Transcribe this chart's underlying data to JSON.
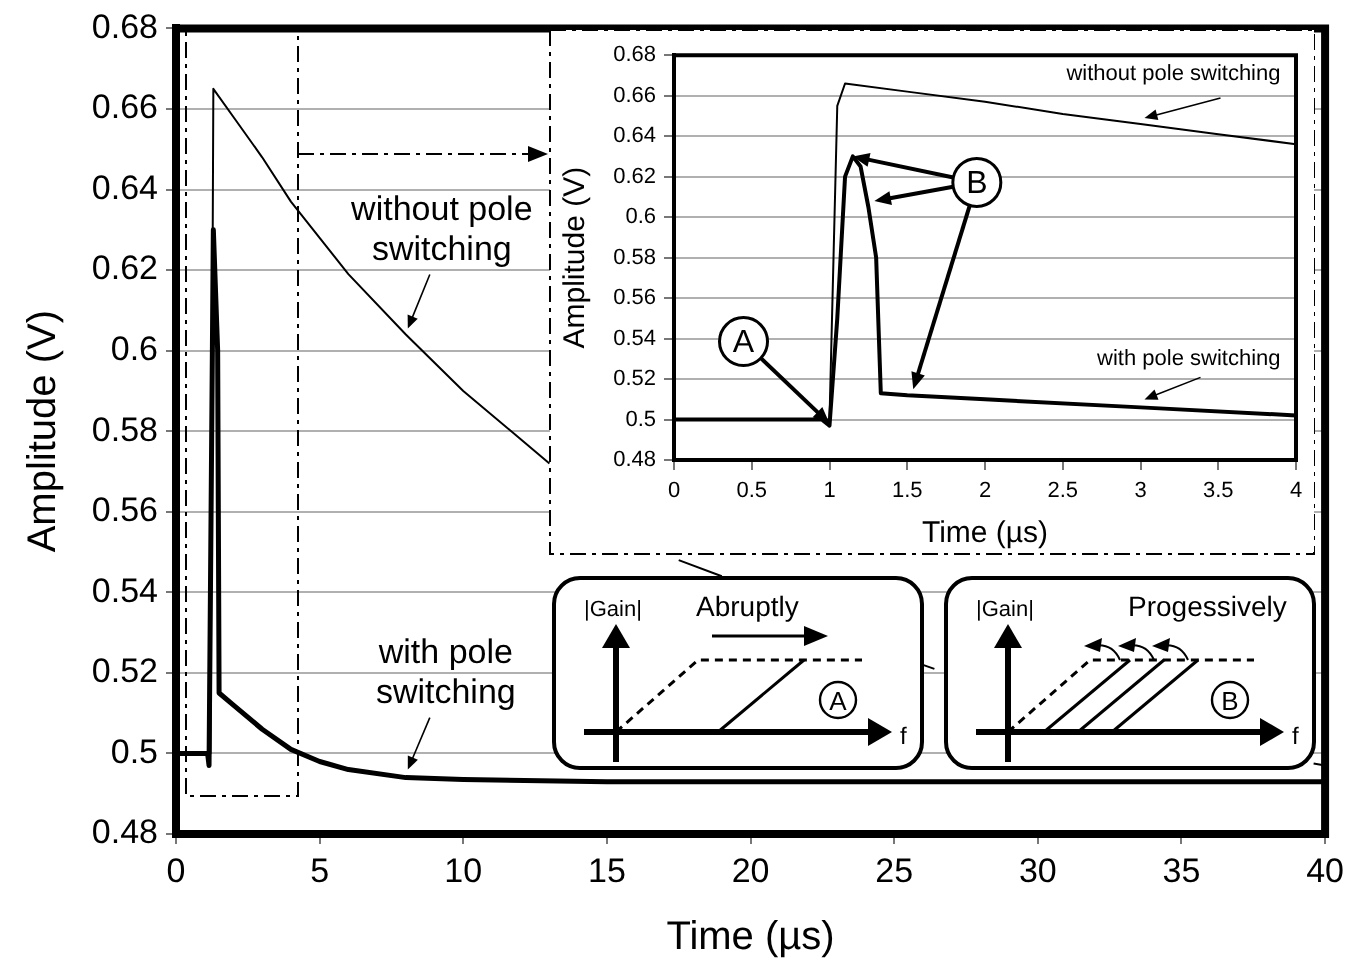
{
  "chart_data": [
    {
      "type": "line",
      "xlabel": "Time (µs)",
      "ylabel": "Amplitude (V)",
      "xlim": [
        0,
        40
      ],
      "xticks": [
        0,
        5,
        10,
        15,
        20,
        25,
        30,
        35,
        40
      ],
      "ylim": [
        0.48,
        0.68
      ],
      "yticks": [
        0.48,
        0.5,
        0.52,
        0.54,
        0.56,
        0.58,
        0.6,
        0.62,
        0.64,
        0.66,
        0.68
      ],
      "grid": "y",
      "series": [
        {
          "name": "without pole switching",
          "color": "#000000",
          "x": [
            0,
            1.2,
            1.3,
            2,
            3,
            4,
            5,
            6,
            8,
            10,
            12,
            13,
            15,
            17.5,
            19,
            22,
            26,
            26.4,
            33,
            39.6,
            40
          ],
          "values": [
            0.5,
            0.5,
            0.665,
            0.658,
            0.648,
            0.637,
            0.628,
            0.619,
            0.604,
            0.59,
            0.578,
            0.572,
            null,
            0.548,
            0.544,
            null,
            0.522,
            0.521,
            null,
            0.4975,
            0.497
          ]
        },
        {
          "name": "with pole switching",
          "color": "#000000",
          "x": [
            0,
            1.1,
            1.15,
            1.3,
            1.45,
            1.5,
            2,
            3,
            4,
            5,
            6,
            8,
            10,
            15,
            20,
            30,
            40
          ],
          "values": [
            0.5,
            0.5,
            0.497,
            0.63,
            0.6,
            0.515,
            0.512,
            0.506,
            0.501,
            0.498,
            0.496,
            0.494,
            0.4935,
            0.493,
            0.493,
            0.493,
            0.493
          ]
        }
      ],
      "annotations": [
        "|Gain|",
        "Abruptly",
        "f",
        "A",
        "|Gain|",
        "Progessively",
        "f",
        "B"
      ]
    },
    {
      "type": "line",
      "xlabel": "Time (µs)",
      "ylabel": "Amplitude (V)",
      "xlim": [
        0,
        4
      ],
      "xticks": [
        0,
        0.5,
        1,
        1.5,
        2,
        2.5,
        3,
        3.5,
        4
      ],
      "ylim": [
        0.48,
        0.68
      ],
      "yticks": [
        0.48,
        0.5,
        0.52,
        0.54,
        0.56,
        0.58,
        0.6,
        0.62,
        0.64,
        0.66,
        0.68
      ],
      "grid": "y",
      "series": [
        {
          "name": "without pole switching",
          "color": "#000000",
          "x": [
            0,
            1,
            1.05,
            1.1,
            1.5,
            2,
            2.5,
            3,
            3.5,
            4
          ],
          "values": [
            0.5,
            0.5,
            0.655,
            0.666,
            0.662,
            0.657,
            0.651,
            0.646,
            0.641,
            0.636
          ]
        },
        {
          "name": "with pole switching",
          "color": "#000000",
          "x": [
            0,
            0.95,
            1,
            1.05,
            1.1,
            1.15,
            1.2,
            1.25,
            1.3,
            1.33,
            1.5,
            2,
            3,
            4
          ],
          "values": [
            0.5,
            0.5,
            0.497,
            0.55,
            0.62,
            0.63,
            0.625,
            0.605,
            0.58,
            0.513,
            0.512,
            0.51,
            0.506,
            0.502
          ]
        }
      ],
      "annotations": [
        {
          "text": "A",
          "x": 1,
          "y": 0.498
        },
        {
          "text": "B",
          "x": 1.15,
          "y": 0.63
        }
      ]
    }
  ]
}
